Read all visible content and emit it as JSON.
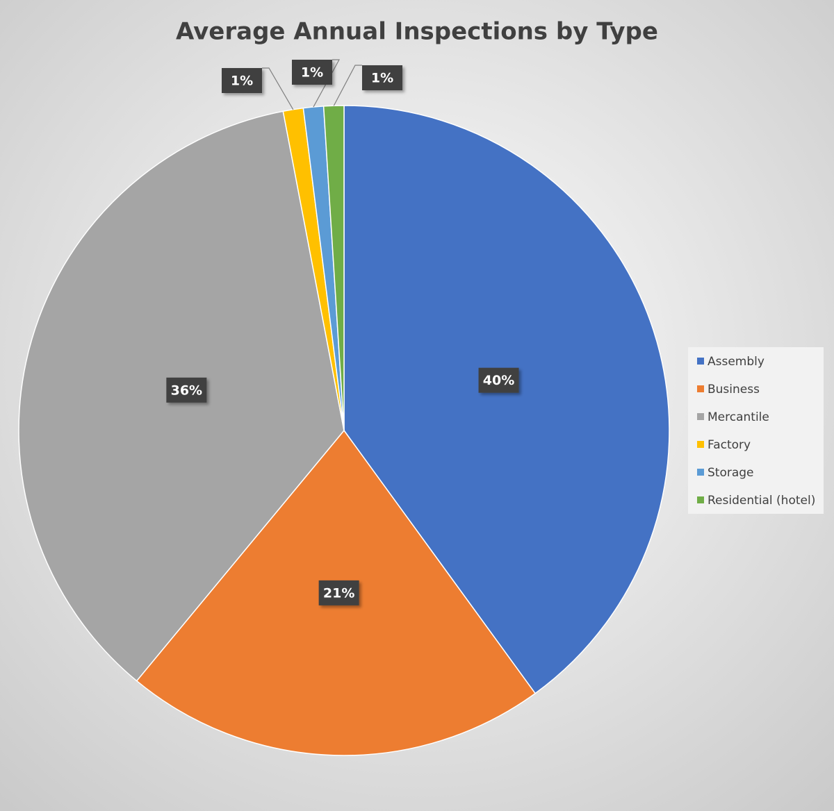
{
  "chart_data": {
    "type": "pie",
    "title": "Average Annual Inspections by Type",
    "categories": [
      "Assembly",
      "Business",
      "Mercantile",
      "Factory",
      "Storage",
      "Residential (hotel)"
    ],
    "values": [
      40,
      21,
      36,
      1,
      1,
      1
    ],
    "value_labels": [
      "40%",
      "21%",
      "36%",
      "1%",
      "1%",
      "1%"
    ],
    "colors": [
      "#4472c4",
      "#ed7d31",
      "#a5a5a5",
      "#ffc000",
      "#5b9bd5",
      "#70ad47"
    ],
    "legend": "right"
  }
}
